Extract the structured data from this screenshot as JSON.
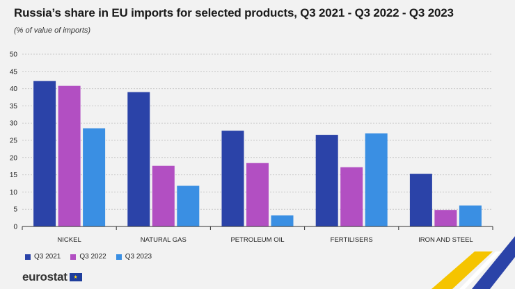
{
  "title": "Russia’s share in EU imports for selected products, Q3 2021 - Q3 2022 - Q3 2023",
  "subtitle": "(% of value of imports)",
  "footer": {
    "logo_text": "eurostat",
    "flag_stars": "★"
  },
  "colors": {
    "series": [
      "#2b43a8",
      "#b24fc2",
      "#3a8fe3"
    ],
    "grid": "#c8c8c8",
    "axis": "#333333",
    "corner_yellow": "#f5c400",
    "corner_blue": "#2b43a8"
  },
  "chart_data": {
    "type": "bar",
    "title": "Russia’s share in EU imports for selected products, Q3 2021 - Q3 2022 - Q3 2023",
    "subtitle": "(% of value of imports)",
    "xlabel": "",
    "ylabel": "",
    "ylim": [
      0,
      50
    ],
    "yticks": [
      0,
      5,
      10,
      15,
      20,
      25,
      30,
      35,
      40,
      45,
      50
    ],
    "grid": true,
    "legend": "bottom-left",
    "categories": [
      "NICKEL",
      "NATURAL GAS",
      "PETROLEUM OIL",
      "FERTILISERS",
      "IRON AND STEEL"
    ],
    "series": [
      {
        "name": "Q3 2021",
        "values": [
          42.2,
          39.0,
          27.8,
          26.6,
          15.3
        ]
      },
      {
        "name": "Q3 2022",
        "values": [
          40.8,
          17.6,
          18.4,
          17.2,
          4.8
        ]
      },
      {
        "name": "Q3 2023",
        "values": [
          28.5,
          11.8,
          3.2,
          27.0,
          6.1
        ]
      }
    ]
  }
}
